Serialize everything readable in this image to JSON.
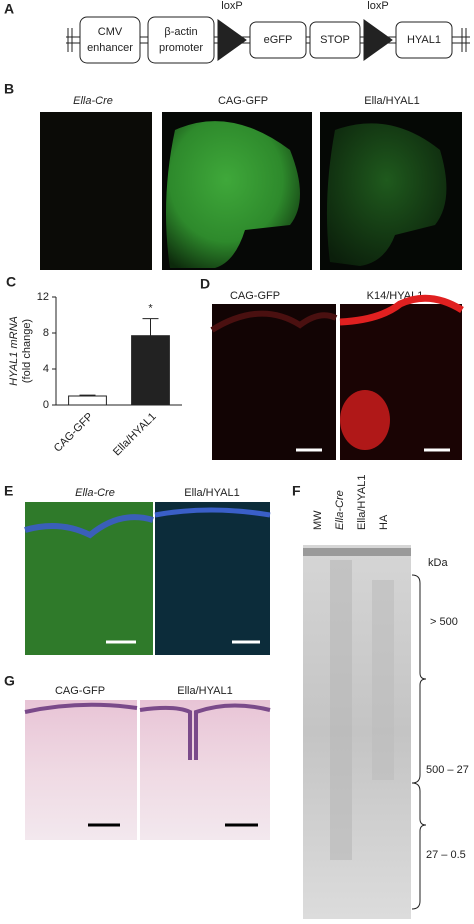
{
  "panel_labels": [
    "A",
    "B",
    "C",
    "D",
    "E",
    "F",
    "G"
  ],
  "panel_a": {
    "boxes": [
      [
        "CMV",
        "enhancer"
      ],
      [
        "β-actin",
        "promoter"
      ],
      [
        "eGFP"
      ],
      [
        "STOP"
      ],
      [
        "HYAL1"
      ]
    ],
    "lox": [
      "loxP",
      "loxP"
    ]
  },
  "panel_b": {
    "titles": [
      "Ella-Cre",
      "CAG-GFP",
      "Ella/HYAL1"
    ]
  },
  "panel_d": {
    "titles": [
      "CAG-GFP",
      "K14/HYAL1"
    ]
  },
  "panel_e": {
    "titles": [
      "Ella-Cre",
      "Ella/HYAL1"
    ]
  },
  "panel_f": {
    "lanes": [
      "MW",
      "Ella-Cre",
      "Ella/HYAL1",
      "HA"
    ],
    "unit": "kDa",
    "ranges": [
      "> 500",
      "500 – 27",
      "27 – 0.5"
    ]
  },
  "panel_g": {
    "titles": [
      "CAG-GFP",
      "Ella/HYAL1"
    ]
  },
  "chart_data": {
    "type": "bar",
    "ylabel": [
      "HYAL1 mRNA",
      "(fold change)"
    ],
    "categories": [
      "CAG-GFP",
      "Ella/HYAL1"
    ],
    "values": [
      1,
      7.7
    ],
    "errors": [
      0.1,
      1.9
    ],
    "colors": [
      "#ffffff",
      "#222222"
    ],
    "annotation": "*",
    "ylim": [
      0,
      12
    ],
    "yticks": [
      0,
      4,
      8,
      12
    ]
  }
}
